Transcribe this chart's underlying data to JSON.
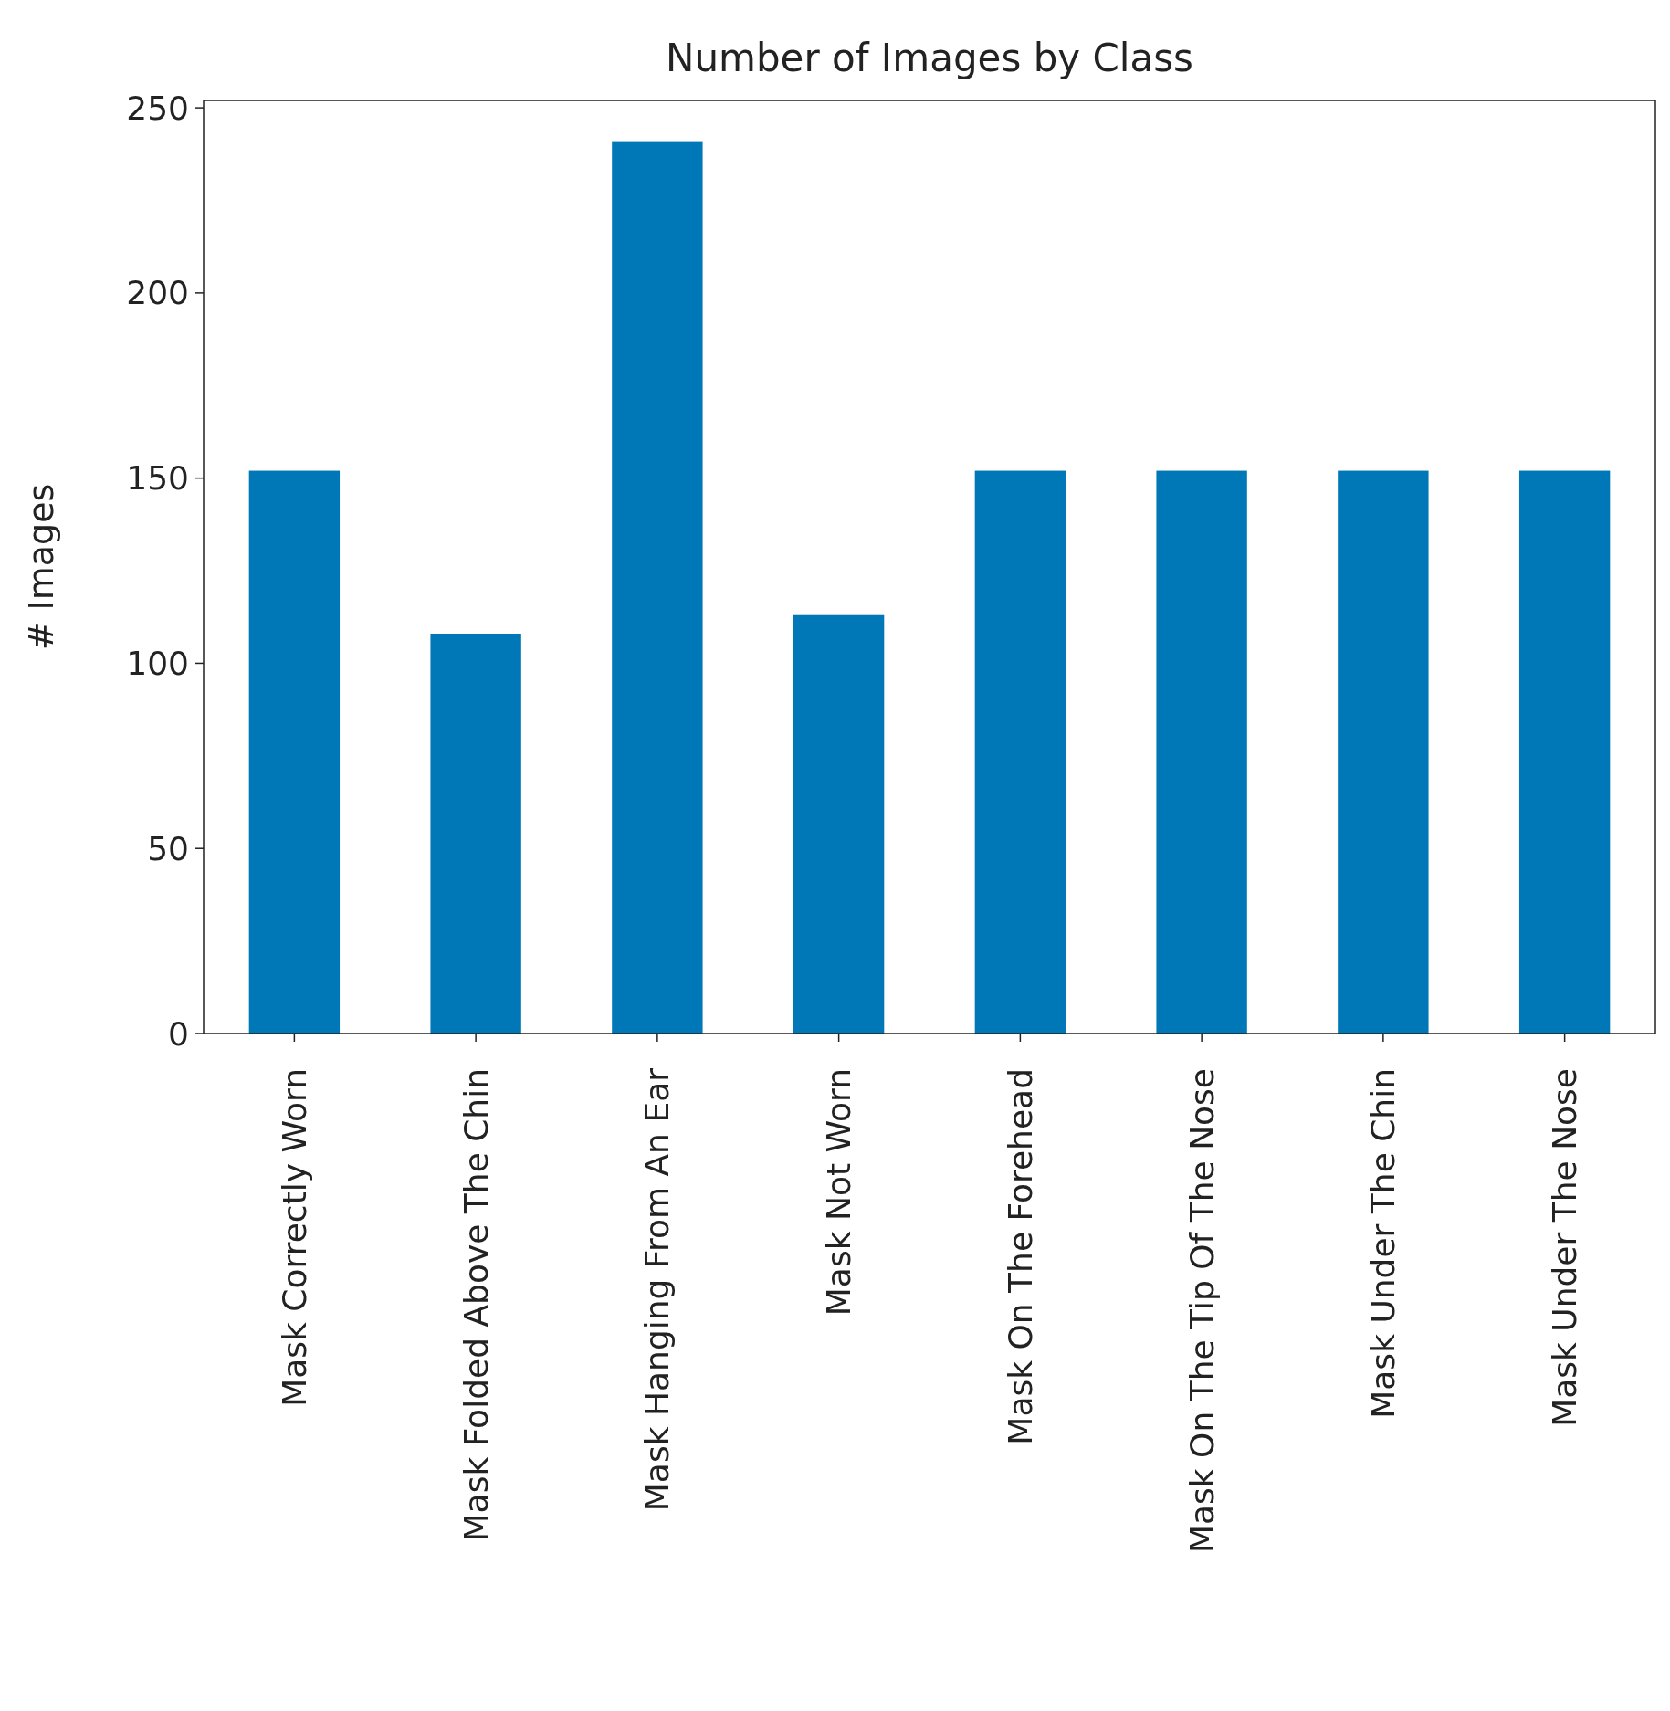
{
  "chart_data": {
    "type": "bar",
    "title": "Number of Images by Class",
    "ylabel": "# Images",
    "categories": [
      "Mask Correctly Worn",
      "Mask Folded Above The Chin",
      "Mask Hanging From An Ear",
      "Mask Not Worn",
      "Mask On The Forehead",
      "Mask On The Tip Of The Nose",
      "Mask Under The Chin",
      "Mask Under The Nose"
    ],
    "values": [
      152,
      108,
      241,
      113,
      152,
      152,
      152,
      152
    ],
    "color": "#0077b6",
    "ylim": [
      0,
      252
    ],
    "yticks": [
      0,
      50,
      100,
      150,
      200,
      250
    ],
    "grid": false
  }
}
